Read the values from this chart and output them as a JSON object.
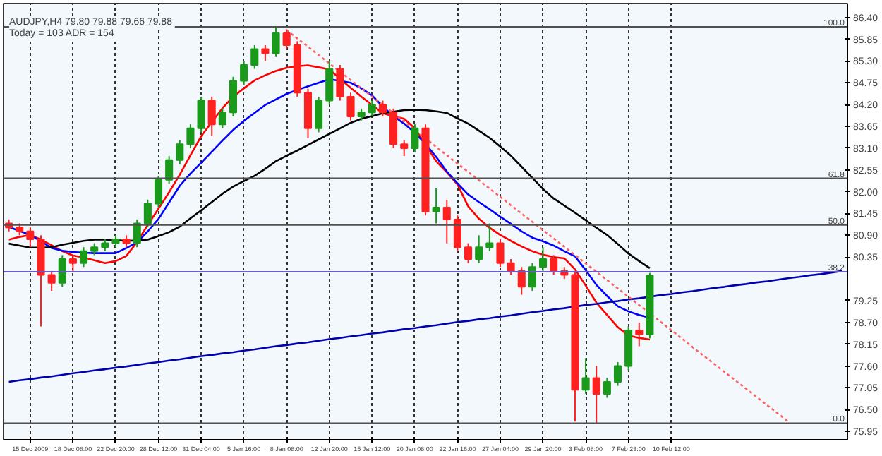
{
  "chart_data": {
    "type": "candlestick",
    "title": "AUDJPY,H4  79.80 79.88 79.66 79.88",
    "subtitle": "Today = 103   ADR = 154",
    "categories": [
      null,
      null,
      "15 Dec 2009",
      null,
      null,
      null,
      "18 Dec 08:00",
      null,
      null,
      null,
      "22 Dec 20:00",
      null,
      null,
      null,
      "28 Dec 12:00",
      null,
      null,
      null,
      "31 Dec 04:00",
      null,
      null,
      null,
      "5 Jan 16:00",
      null,
      null,
      null,
      "8 Jan 08:00",
      null,
      null,
      null,
      "12 Jan 20:00",
      null,
      null,
      null,
      "15 Jan 12:00",
      null,
      null,
      null,
      "20 Jan 08:00",
      null,
      null,
      null,
      "22 Jan 16:00",
      null,
      null,
      null,
      "27 Jan 04:00",
      null,
      null,
      null,
      "29 Jan 20:00",
      null,
      null,
      null,
      "3 Feb 08:00",
      null,
      null,
      null,
      "7 Feb 23:00",
      null,
      null,
      null,
      "10 Feb 12:00",
      null,
      null,
      null,
      null,
      null,
      null,
      null,
      null,
      null,
      null,
      null,
      null,
      null,
      null,
      null,
      null
    ],
    "ohlc": [
      [
        81.2,
        81.3,
        81.0,
        81.1
      ],
      [
        81.1,
        81.2,
        80.9,
        81.0
      ],
      [
        81.0,
        81.1,
        80.6,
        80.8
      ],
      [
        80.8,
        80.9,
        78.6,
        79.9
      ],
      [
        79.9,
        80.0,
        79.5,
        79.7
      ],
      [
        79.7,
        80.4,
        79.6,
        80.3
      ],
      [
        80.3,
        80.4,
        80.0,
        80.2
      ],
      [
        80.2,
        80.6,
        80.1,
        80.5
      ],
      [
        80.5,
        80.7,
        80.4,
        80.6
      ],
      [
        80.6,
        80.8,
        80.5,
        80.7
      ],
      [
        80.7,
        80.9,
        80.6,
        80.8
      ],
      [
        80.8,
        80.9,
        80.6,
        80.7
      ],
      [
        80.7,
        81.3,
        80.6,
        81.2
      ],
      [
        81.2,
        81.8,
        81.1,
        81.7
      ],
      [
        81.7,
        82.4,
        81.6,
        82.3
      ],
      [
        82.3,
        82.9,
        82.2,
        82.8
      ],
      [
        82.8,
        83.3,
        82.7,
        83.2
      ],
      [
        83.2,
        83.7,
        83.1,
        83.6
      ],
      [
        83.6,
        84.4,
        83.5,
        84.3
      ],
      [
        84.3,
        84.4,
        83.4,
        83.7
      ],
      [
        83.7,
        84.1,
        83.6,
        84.0
      ],
      [
        84.0,
        84.9,
        83.9,
        84.8
      ],
      [
        84.8,
        85.3,
        84.7,
        85.2
      ],
      [
        85.2,
        85.7,
        85.1,
        85.6
      ],
      [
        85.6,
        85.7,
        85.3,
        85.5
      ],
      [
        85.5,
        86.16,
        85.4,
        86.0
      ],
      [
        86.0,
        86.1,
        85.6,
        85.7
      ],
      [
        85.7,
        85.8,
        84.4,
        84.5
      ],
      [
        84.5,
        84.6,
        83.35,
        83.6
      ],
      [
        83.6,
        84.4,
        83.5,
        84.3
      ],
      [
        84.3,
        85.3,
        84.2,
        85.1
      ],
      [
        85.1,
        85.2,
        84.3,
        84.4
      ],
      [
        84.4,
        84.5,
        83.8,
        83.9
      ],
      [
        83.9,
        84.1,
        83.8,
        84.0
      ],
      [
        84.0,
        84.3,
        83.9,
        84.2
      ],
      [
        84.2,
        84.3,
        83.9,
        84.0
      ],
      [
        84.0,
        84.1,
        83.1,
        83.2
      ],
      [
        83.2,
        83.3,
        82.9,
        83.1
      ],
      [
        83.1,
        83.7,
        83.0,
        83.6
      ],
      [
        83.6,
        83.7,
        81.4,
        81.5
      ],
      [
        81.5,
        82.1,
        81.2,
        81.6
      ],
      [
        81.6,
        81.8,
        80.7,
        81.3
      ],
      [
        81.3,
        81.4,
        80.5,
        80.6
      ],
      [
        80.6,
        80.7,
        80.2,
        80.3
      ],
      [
        80.3,
        80.9,
        80.2,
        80.6
      ],
      [
        80.6,
        81.2,
        80.5,
        80.7
      ],
      [
        80.7,
        80.8,
        80.1,
        80.2
      ],
      [
        80.2,
        80.3,
        79.9,
        80.0
      ],
      [
        80.0,
        80.1,
        79.4,
        79.6
      ],
      [
        79.6,
        80.2,
        79.5,
        80.1
      ],
      [
        80.1,
        80.6,
        80.0,
        80.3
      ],
      [
        80.3,
        80.4,
        79.9,
        80.0
      ],
      [
        80.0,
        80.1,
        79.8,
        79.9
      ],
      [
        79.9,
        80.0,
        76.2,
        77.0
      ],
      [
        77.0,
        77.8,
        76.9,
        77.3
      ],
      [
        77.3,
        77.6,
        76.16,
        76.9
      ],
      [
        76.9,
        77.3,
        76.8,
        77.2
      ],
      [
        77.2,
        77.7,
        77.1,
        77.6
      ],
      [
        77.6,
        78.6,
        77.5,
        78.5
      ],
      [
        78.5,
        78.7,
        78.1,
        78.4
      ],
      [
        78.4,
        79.95,
        78.3,
        79.88
      ],
      null,
      null,
      null,
      null,
      null,
      null,
      null,
      null,
      null,
      null,
      null,
      null,
      null,
      null,
      null,
      null,
      null,
      null
    ],
    "colors": [
      "#ff2020",
      "#ff2020",
      "#ff2020",
      "#ff2020",
      "#ff2020",
      "#1a9a1a",
      "#ff2020",
      "#1a9a1a",
      "#1a9a1a",
      "#1a9a1a",
      "#1a9a1a",
      "#ff2020",
      "#1a9a1a",
      "#1a9a1a",
      "#1a9a1a",
      "#1a9a1a",
      "#1a9a1a",
      "#1a9a1a",
      "#1a9a1a",
      "#ff2020",
      "#1a9a1a",
      "#1a9a1a",
      "#1a9a1a",
      "#1a9a1a",
      "#ff2020",
      "#1a9a1a",
      "#ff2020",
      "#ff2020",
      "#ff2020",
      "#1a9a1a",
      "#1a9a1a",
      "#ff2020",
      "#ff2020",
      "#1a9a1a",
      "#1a9a1a",
      "#ff2020",
      "#ff2020",
      "#ff2020",
      "#1a9a1a",
      "#ff2020",
      "#1a9a1a",
      "#ff2020",
      "#ff2020",
      "#ff2020",
      "#1a9a1a",
      "#1a9a1a",
      "#ff2020",
      "#ff2020",
      "#ff2020",
      "#1a9a1a",
      "#1a9a1a",
      "#ff2020",
      "#ff2020",
      "#ff2020",
      "#1a9a1a",
      "#ff2020",
      "#1a9a1a",
      "#1a9a1a",
      "#1a9a1a",
      "#ff2020",
      "#1a9a1a",
      null,
      null,
      null,
      null,
      null,
      null,
      null,
      null,
      null,
      null,
      null,
      null,
      null,
      null,
      null,
      null,
      null,
      null
    ],
    "series": [
      {
        "type": "line",
        "color": "#ff0000",
        "values": [
          80.79,
          80.86,
          80.91,
          80.79,
          80.65,
          80.5,
          80.39,
          80.34,
          80.27,
          80.2,
          80.25,
          80.38,
          80.73,
          81.16,
          81.57,
          81.99,
          82.43,
          82.92,
          83.4,
          83.76,
          84.11,
          84.4,
          84.61,
          84.81,
          84.94,
          85.05,
          85.13,
          85.17,
          85.19,
          85.14,
          85.09,
          84.85,
          84.62,
          84.4,
          84.19,
          83.98,
          83.91,
          83.84,
          83.6,
          83.19,
          82.77,
          82.49,
          82.18,
          81.63,
          81.32,
          81.09,
          80.91,
          80.76,
          80.62,
          80.5,
          80.41,
          80.35,
          80.32,
          80.04,
          79.63,
          79.2,
          78.89,
          78.58,
          78.37,
          78.31,
          78.27,
          null,
          null,
          null,
          null,
          null,
          null,
          null,
          null,
          null,
          null,
          null,
          null,
          null,
          null,
          null,
          null,
          null,
          null
        ]
      },
      {
        "type": "line",
        "color": "#0000ff",
        "values": [
          81.11,
          81.01,
          80.91,
          80.75,
          80.58,
          80.51,
          80.48,
          80.46,
          80.45,
          80.45,
          80.45,
          80.58,
          80.72,
          81.0,
          81.31,
          81.73,
          82.15,
          82.46,
          82.73,
          83.01,
          83.29,
          83.56,
          83.79,
          83.99,
          84.19,
          84.33,
          84.47,
          84.57,
          84.66,
          84.75,
          84.84,
          84.8,
          84.75,
          84.61,
          84.43,
          84.15,
          83.91,
          83.72,
          83.49,
          83.21,
          82.88,
          82.51,
          82.21,
          81.93,
          81.74,
          81.56,
          81.37,
          81.19,
          81.0,
          80.84,
          80.75,
          80.64,
          80.5,
          80.37,
          80.02,
          79.65,
          79.37,
          79.11,
          78.98,
          78.89,
          78.82,
          null,
          null,
          null,
          null,
          null,
          null,
          null,
          null,
          null,
          null,
          null,
          null,
          null,
          null,
          null,
          null,
          null,
          null
        ]
      },
      {
        "type": "line",
        "color": "#000000",
        "values": [
          80.69,
          80.64,
          80.59,
          80.59,
          80.6,
          80.66,
          80.71,
          80.76,
          80.79,
          80.79,
          80.78,
          80.76,
          80.77,
          80.79,
          80.88,
          80.98,
          81.12,
          81.33,
          81.53,
          81.74,
          81.95,
          82.13,
          82.27,
          82.4,
          82.58,
          82.77,
          82.91,
          83.04,
          83.18,
          83.32,
          83.46,
          83.6,
          83.74,
          83.84,
          83.91,
          83.98,
          84.02,
          84.06,
          84.07,
          84.06,
          84.03,
          83.99,
          83.85,
          83.72,
          83.54,
          83.36,
          83.14,
          82.91,
          82.63,
          82.35,
          82.07,
          81.83,
          81.65,
          81.47,
          81.28,
          81.09,
          80.91,
          80.68,
          80.44,
          80.25,
          80.07,
          null,
          null,
          null,
          null,
          null,
          null,
          null,
          null,
          null,
          null,
          null,
          null,
          null,
          null,
          null,
          null,
          null,
          null
        ]
      },
      {
        "type": "line",
        "color": "#0000b0",
        "values": [
          77.2,
          77.24,
          77.27,
          77.31,
          77.34,
          77.38,
          77.42,
          77.45,
          77.49,
          77.52,
          77.56,
          77.59,
          77.63,
          77.67,
          77.7,
          77.74,
          77.77,
          77.81,
          77.85,
          77.88,
          77.92,
          77.95,
          77.99,
          78.02,
          78.06,
          78.1,
          78.13,
          78.17,
          78.2,
          78.24,
          78.28,
          78.31,
          78.35,
          78.38,
          78.42,
          78.45,
          78.49,
          78.53,
          78.56,
          78.6,
          78.63,
          78.67,
          78.71,
          78.74,
          78.78,
          78.81,
          78.85,
          78.88,
          78.92,
          78.96,
          78.99,
          79.03,
          79.06,
          79.1,
          79.14,
          79.17,
          79.21,
          79.24,
          79.28,
          79.31,
          79.35,
          79.39,
          79.42,
          79.46,
          79.49,
          79.53,
          79.57,
          79.6,
          79.64,
          79.67,
          79.71,
          79.74,
          79.78,
          79.82,
          79.85,
          79.89,
          79.92,
          79.96,
          80.0
        ]
      },
      {
        "type": "line",
        "color": "#ff6060",
        "line_style": "dotted",
        "values": [
          null,
          null,
          null,
          null,
          null,
          null,
          null,
          null,
          null,
          null,
          null,
          null,
          null,
          null,
          null,
          null,
          null,
          null,
          null,
          null,
          null,
          null,
          null,
          null,
          null,
          null,
          86.08,
          85.87,
          85.66,
          85.45,
          85.24,
          85.03,
          84.82,
          84.61,
          84.4,
          84.19,
          83.98,
          83.77,
          83.56,
          83.35,
          83.13,
          82.92,
          82.71,
          82.5,
          82.29,
          82.08,
          81.87,
          81.66,
          81.45,
          81.24,
          81.03,
          80.82,
          80.61,
          80.4,
          80.19,
          79.98,
          79.77,
          79.56,
          79.35,
          79.14,
          78.93,
          78.72,
          78.51,
          78.3,
          78.08,
          77.87,
          77.66,
          77.45,
          77.24,
          77.03,
          76.82,
          76.61,
          76.4,
          76.19,
          null,
          null,
          null,
          null,
          null
        ]
      }
    ],
    "ref_lines": [
      {
        "axis": "y",
        "value": 86.16,
        "color": "#505050"
      },
      {
        "axis": "y",
        "value": 82.34,
        "color": "#505050"
      },
      {
        "axis": "y",
        "value": 81.16,
        "color": "#505050"
      },
      {
        "axis": "y",
        "value": 79.98,
        "color": "#6a5acd"
      },
      {
        "axis": "y",
        "value": 76.16,
        "color": "#505050"
      }
    ],
    "annotations": [
      "100.0",
      "61.8",
      "50.0",
      "38.2",
      "0.0"
    ],
    "ylim": [
      75.74,
      86.75
    ],
    "yticks": [
      {
        "value": 86.4,
        "label": "86.40"
      },
      {
        "value": 85.85,
        "label": "85.85"
      },
      {
        "value": 85.3,
        "label": "85.30"
      },
      {
        "value": 84.75,
        "label": "84.75"
      },
      {
        "value": 84.2,
        "label": "84.20"
      },
      {
        "value": 83.65,
        "label": "83.65"
      },
      {
        "value": 83.1,
        "label": "83.10"
      },
      {
        "value": 82.55,
        "label": "82.55"
      },
      {
        "value": 82.0,
        "label": "82.00"
      },
      {
        "value": 81.45,
        "label": "81.45"
      },
      {
        "value": 80.9,
        "label": "80.90"
      },
      {
        "value": 80.35,
        "label": "80.35"
      },
      {
        "value": 79.25,
        "label": "79.25"
      },
      {
        "value": 78.7,
        "label": "78.70"
      },
      {
        "value": 78.15,
        "label": "78.15"
      },
      {
        "value": 77.6,
        "label": "77.60"
      },
      {
        "value": 77.05,
        "label": "77.05"
      },
      {
        "value": 76.5,
        "label": "76.50"
      },
      {
        "value": 75.95,
        "label": "75.95"
      }
    ],
    "grid": "x"
  }
}
